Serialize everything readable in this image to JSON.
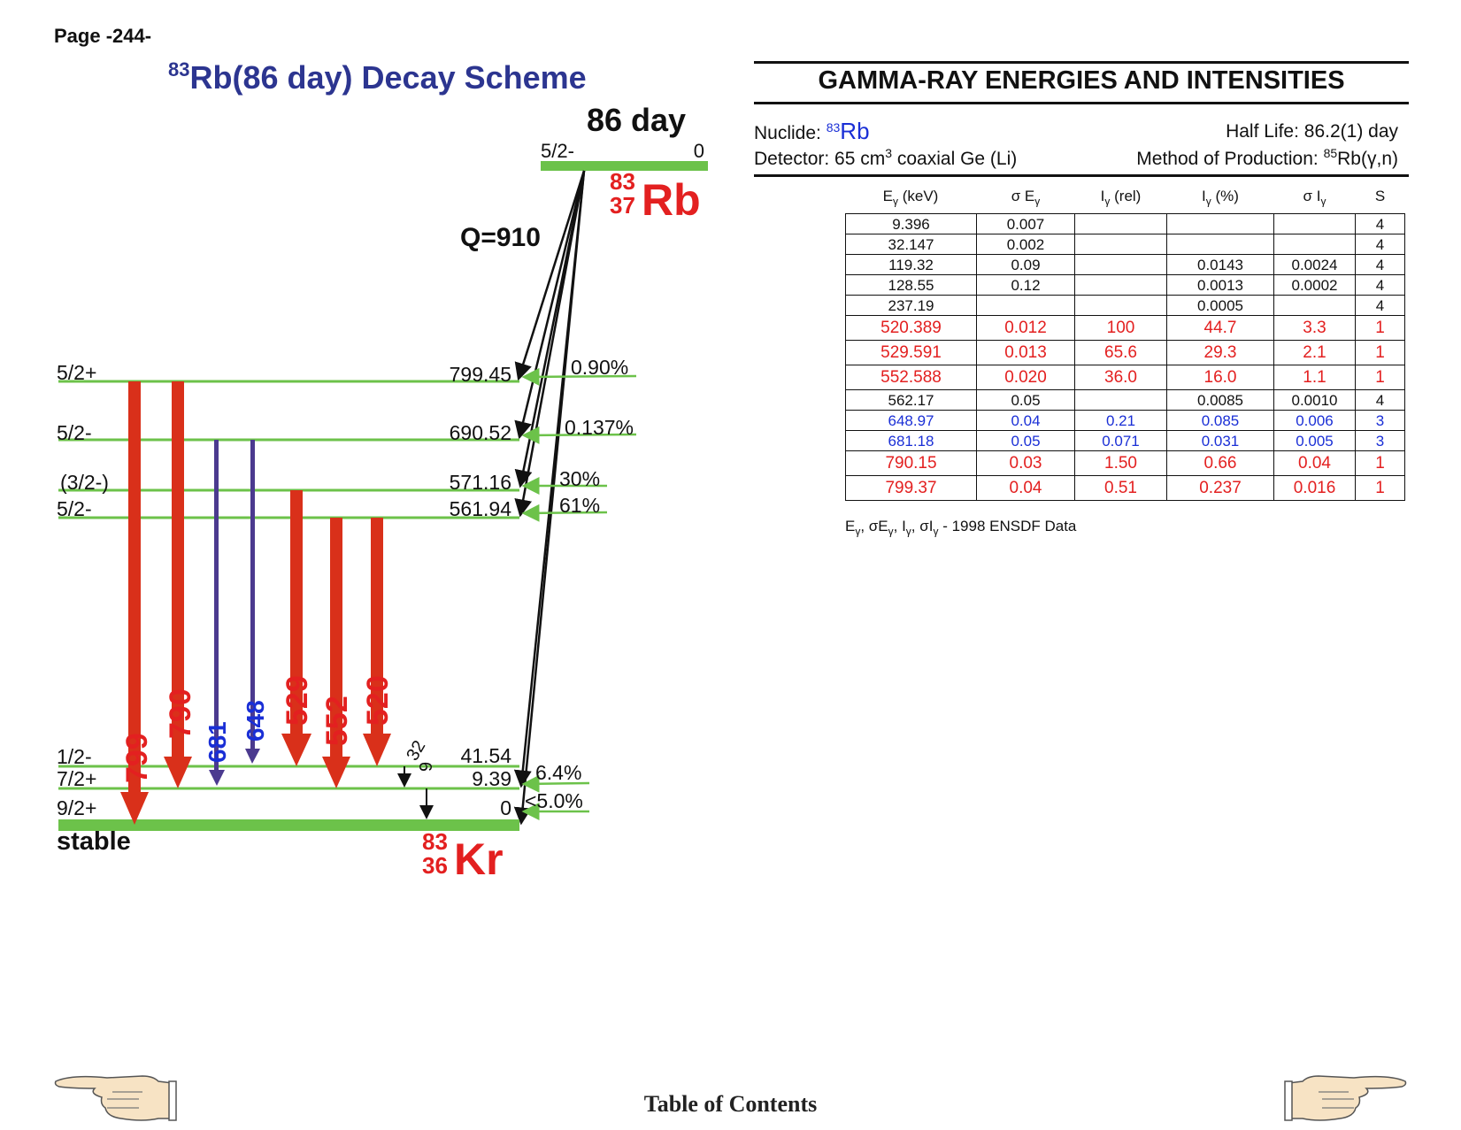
{
  "page_label": "Page -244-",
  "scheme": {
    "title_mass": "83",
    "title_rest": "Rb(86 day) Decay Scheme",
    "parent_halflife": "86 day",
    "parent_spin": "5/2-",
    "parent_energy": "0",
    "parent_mass": "83",
    "parent_z": "37",
    "parent_symbol": "Rb",
    "q_value": "Q=910",
    "daughter_mass": "83",
    "daughter_z": "36",
    "daughter_symbol": "Kr",
    "stable_label": "stable",
    "levels": [
      {
        "spin": "5/2+",
        "energy": "799.45",
        "branch": "0.90%"
      },
      {
        "spin": "5/2-",
        "energy": "690.52",
        "branch": "0.137%"
      },
      {
        "spin": "(3/2-)",
        "energy": "571.16",
        "branch": "30%"
      },
      {
        "spin": "5/2-",
        "energy": "561.94",
        "branch": "61%"
      },
      {
        "spin": "1/2-",
        "energy": "41.54",
        "branch": ""
      },
      {
        "spin": "7/2+",
        "energy": "9.39",
        "branch": "6.4%"
      },
      {
        "spin": "9/2+",
        "energy": "0",
        "branch": "<5.0%"
      }
    ],
    "transitions": [
      {
        "label": "799",
        "color": "#d9301a"
      },
      {
        "label": "790",
        "color": "#d9301a"
      },
      {
        "label": "681",
        "color": "#1a2fd6"
      },
      {
        "label": "648",
        "color": "#1a2fd6"
      },
      {
        "label": "529",
        "color": "#d9301a"
      },
      {
        "label": "552",
        "color": "#d9301a"
      },
      {
        "label": "520",
        "color": "#d9301a"
      },
      {
        "label": "32",
        "color": "#111111"
      },
      {
        "label": "9",
        "color": "#111111"
      }
    ],
    "colors": {
      "level_line": "#6cc24a",
      "strong": "#d9301a",
      "weak": "#4b3a8f",
      "title": "#2c3590"
    }
  },
  "panel": {
    "title": "GAMMA-RAY ENERGIES AND INTENSITIES",
    "nuclide_label": "Nuclide:",
    "nuclide_mass": "83",
    "nuclide_symbol": "Rb",
    "half_life": "Half Life: 86.2(1) day",
    "detector_prefix": "Detector: 65 cm",
    "detector_exp": "3",
    "detector_suffix": " coaxial Ge (Li)",
    "production_prefix": "Method of Production: ",
    "production_mass": "85",
    "production_suffix": "Rb(γ,n)"
  },
  "table": {
    "headers": [
      "E",
      "(keV)",
      "σ E",
      "I",
      "(rel)",
      "I",
      "(%)",
      "σ I",
      "S"
    ],
    "rows": [
      {
        "cells": [
          "9.396",
          "0.007",
          "",
          "",
          "",
          "4"
        ],
        "color": "black"
      },
      {
        "cells": [
          "32.147",
          "0.002",
          "",
          "",
          "",
          "4"
        ],
        "color": "black"
      },
      {
        "cells": [
          "119.32",
          "0.09",
          "",
          "0.0143",
          "0.0024",
          "4"
        ],
        "color": "black"
      },
      {
        "cells": [
          "128.55",
          "0.12",
          "",
          "0.0013",
          "0.0002",
          "4"
        ],
        "color": "black"
      },
      {
        "cells": [
          "237.19",
          "",
          "",
          "0.0005",
          "",
          "4"
        ],
        "color": "black"
      },
      {
        "cells": [
          "520.389",
          "0.012",
          "100",
          "44.7",
          "3.3",
          "1"
        ],
        "color": "red"
      },
      {
        "cells": [
          "529.591",
          "0.013",
          "65.6",
          "29.3",
          "2.1",
          "1"
        ],
        "color": "red"
      },
      {
        "cells": [
          "552.588",
          "0.020",
          "36.0",
          "16.0",
          "1.1",
          "1"
        ],
        "color": "red"
      },
      {
        "cells": [
          "562.17",
          "0.05",
          "",
          "0.0085",
          "0.0010",
          "4"
        ],
        "color": "black"
      },
      {
        "cells": [
          "648.97",
          "0.04",
          "0.21",
          "0.085",
          "0.006",
          "3"
        ],
        "color": "blue"
      },
      {
        "cells": [
          "681.18",
          "0.05",
          "0.071",
          "0.031",
          "0.005",
          "3"
        ],
        "color": "blue"
      },
      {
        "cells": [
          "790.15",
          "0.03",
          "1.50",
          "0.66",
          "0.04",
          "1"
        ],
        "color": "red"
      },
      {
        "cells": [
          "799.37",
          "0.04",
          "0.51",
          "0.237",
          "0.016",
          "1"
        ],
        "color": "red"
      }
    ],
    "footnote_source": "- 1998 ENSDF Data"
  },
  "footer": {
    "toc_label": "Table of Contents",
    "prev_icon": "pointing-hand-left-icon",
    "next_icon": "pointing-hand-right-icon"
  }
}
